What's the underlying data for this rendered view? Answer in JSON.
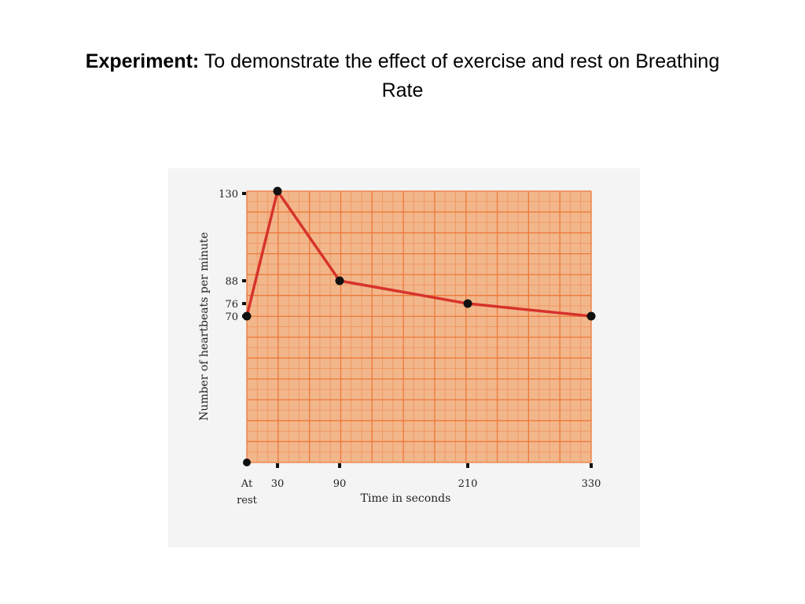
{
  "slide": {
    "title_bold": "Experiment:",
    "title_rest": " To demonstrate the effect of exercise and rest on Breathing Rate"
  },
  "colors": {
    "plot_background": "#f2b68b",
    "grid_minor": "#f09a64",
    "grid_major": "#ec7a3a",
    "line": "#d6332b",
    "marker": "#111111",
    "panel": "#f4f4f4"
  },
  "chart_data": {
    "type": "line",
    "xlabel": "Time in seconds",
    "ylabel": "Number of heartbeats per minute",
    "x_categories": [
      "At rest",
      "30",
      "90",
      "210",
      "330"
    ],
    "x_tick_labels": [
      {
        "line1": "At",
        "line2": "rest"
      },
      {
        "line1": "30",
        "line2": ""
      },
      {
        "line1": "90",
        "line2": ""
      },
      {
        "line1": "210",
        "line2": ""
      },
      {
        "line1": "330",
        "line2": ""
      }
    ],
    "y_tick_labels": [
      "130",
      "88",
      "76",
      "70"
    ],
    "y_ticks": [
      130,
      88,
      76,
      70
    ],
    "series": [
      {
        "values": [
          70,
          132,
          88,
          76,
          70
        ]
      }
    ],
    "grid": true
  }
}
